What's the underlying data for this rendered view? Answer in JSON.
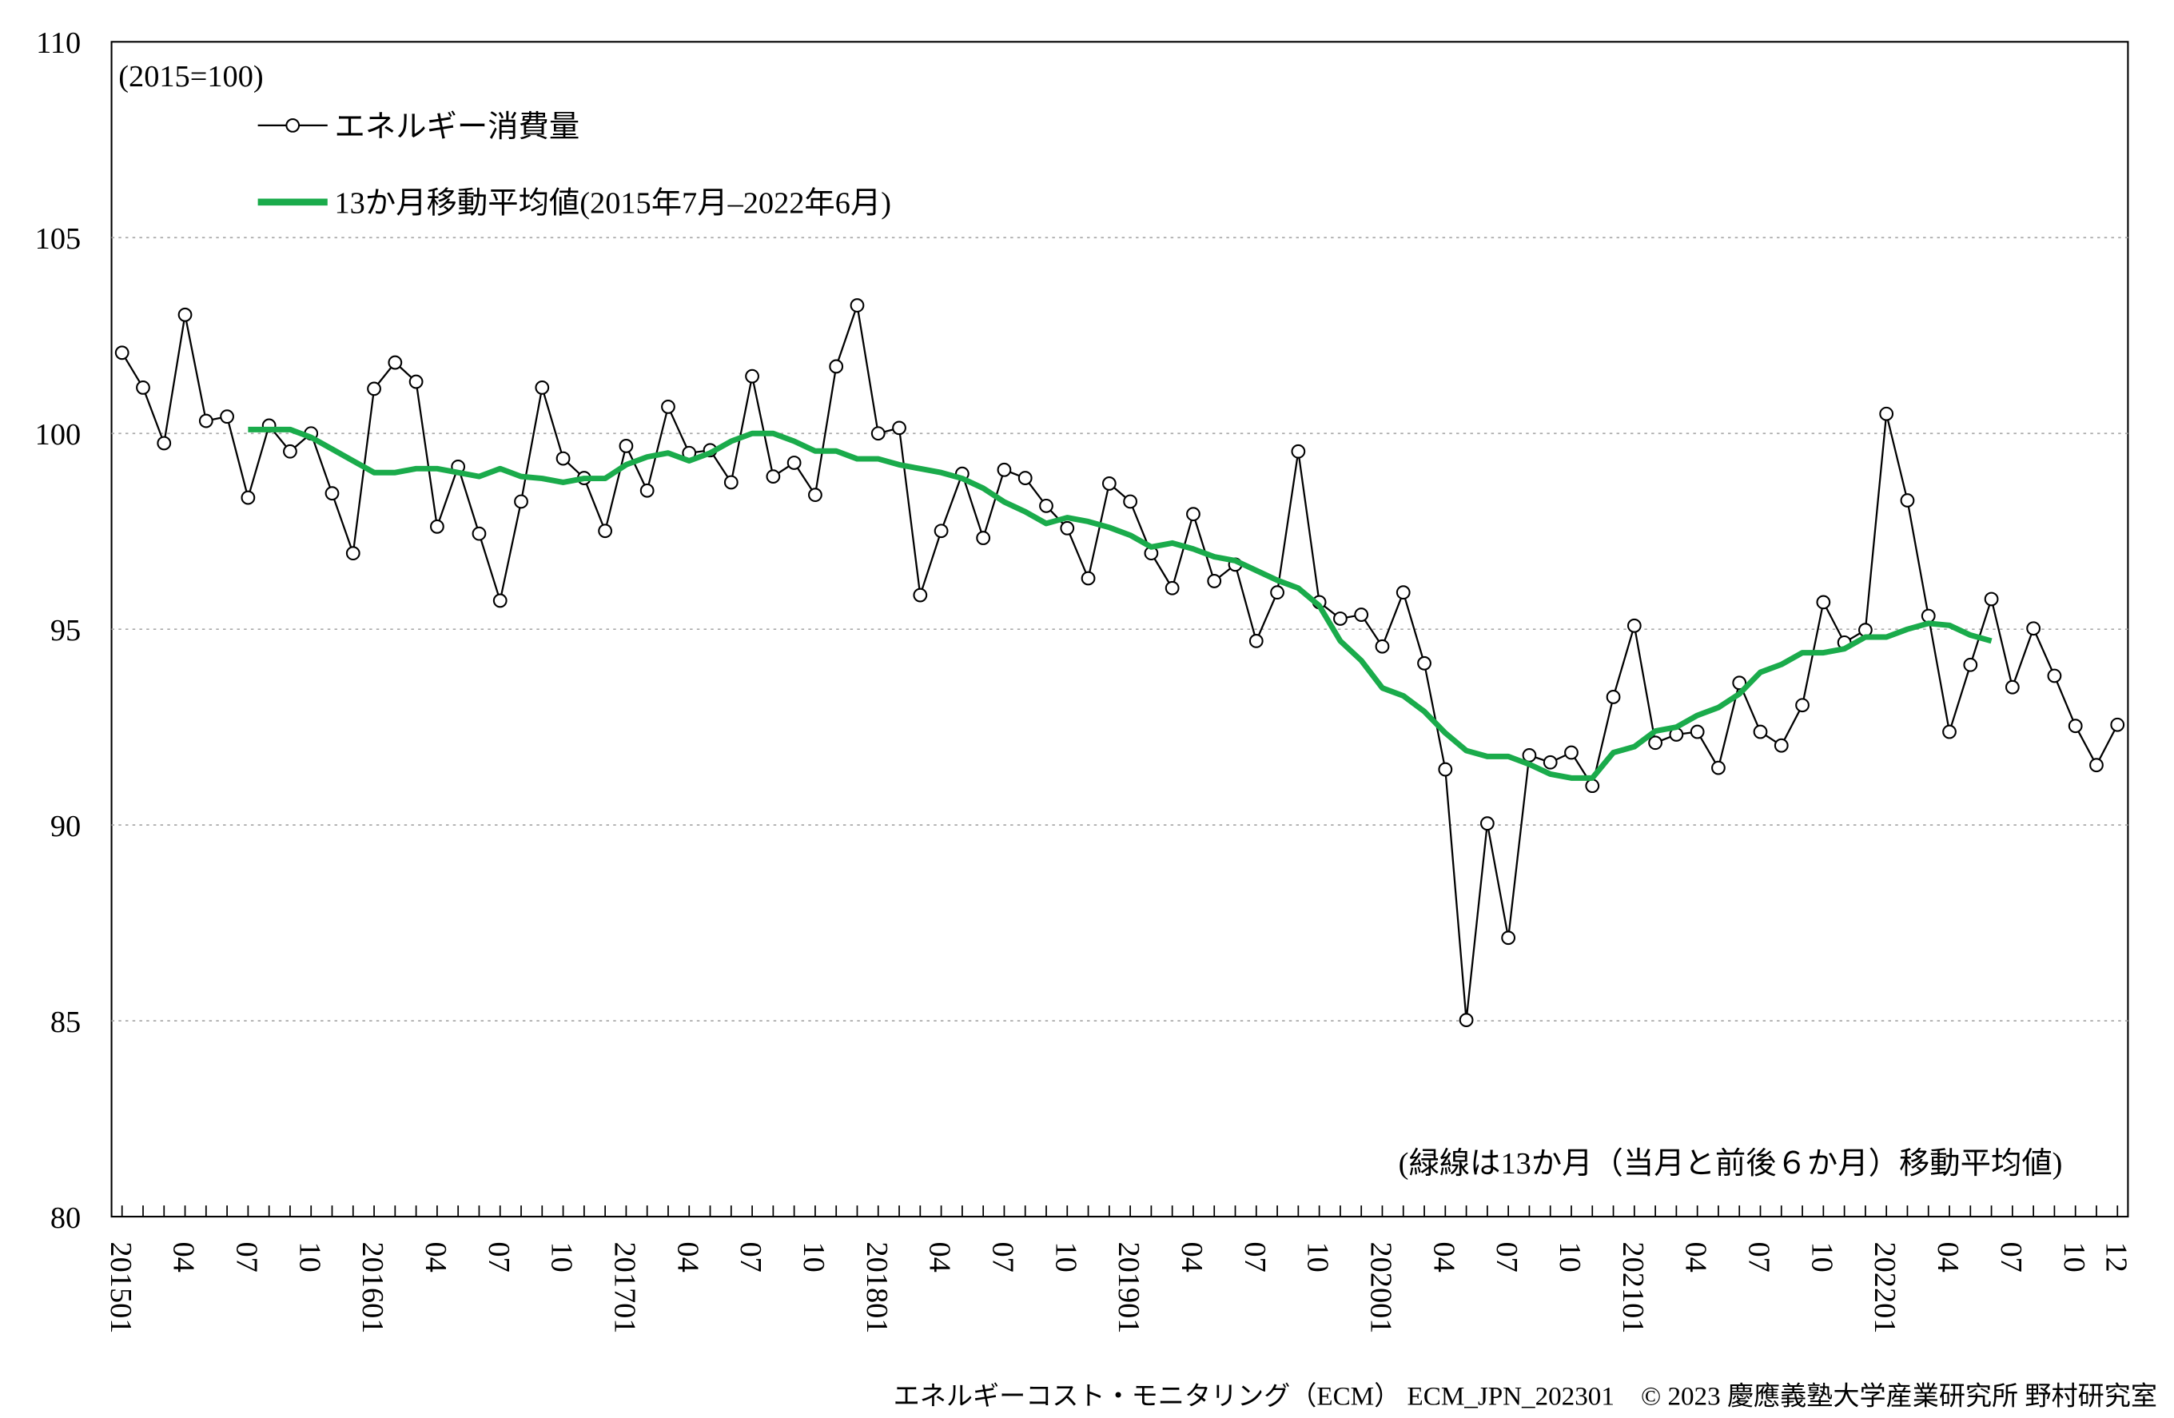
{
  "chart_data": {
    "type": "line",
    "unit_label": "(2015=100)",
    "annotation": "(緑線は13か月（当月と前後６か月）移動平均値)",
    "footer": "エネルギーコスト・モニタリング（ECM） ECM_JPN_202301　© 2023 慶應義塾大学産業研究所 野村研究室",
    "categories": [
      "201501",
      null,
      null,
      "04",
      null,
      null,
      "07",
      null,
      null,
      "10",
      null,
      null,
      "201601",
      null,
      null,
      "04",
      null,
      null,
      "07",
      null,
      null,
      "10",
      null,
      null,
      "201701",
      null,
      null,
      "04",
      null,
      null,
      "07",
      null,
      null,
      "10",
      null,
      null,
      "201801",
      null,
      null,
      "04",
      null,
      null,
      "07",
      null,
      null,
      "10",
      null,
      null,
      "201901",
      null,
      null,
      "04",
      null,
      null,
      "07",
      null,
      null,
      "10",
      null,
      null,
      "202001",
      null,
      null,
      "04",
      null,
      null,
      "07",
      null,
      null,
      "10",
      null,
      null,
      "202101",
      null,
      null,
      "04",
      null,
      null,
      "07",
      null,
      null,
      "10",
      null,
      null,
      "202201",
      null,
      null,
      "04",
      null,
      null,
      "07",
      null,
      null,
      "10",
      null,
      "12"
    ],
    "series": [
      {
        "name": "エネルギー消費量",
        "color": "#000000",
        "markers": true,
        "values": [
          102.06,
          101.17,
          99.75,
          103.03,
          100.32,
          100.43,
          98.36,
          100.2,
          99.54,
          100.0,
          98.47,
          96.94,
          101.14,
          101.81,
          101.32,
          97.62,
          99.15,
          97.44,
          95.73,
          98.26,
          101.17,
          99.36,
          98.86,
          97.51,
          99.68,
          98.54,
          100.68,
          99.5,
          99.57,
          98.75,
          101.46,
          98.9,
          99.25,
          98.43,
          101.71,
          103.27,
          100.0,
          100.14,
          95.87,
          97.51,
          98.97,
          97.33,
          99.07,
          98.86,
          98.15,
          97.58,
          96.3,
          98.72,
          98.26,
          96.94,
          96.05,
          97.94,
          96.23,
          96.65,
          94.7,
          95.94,
          99.54,
          95.69,
          95.27,
          95.37,
          94.56,
          95.94,
          94.13,
          91.42,
          85.02,
          90.04,
          87.12,
          91.78,
          91.6,
          91.85,
          91.0,
          93.27,
          95.09,
          92.1,
          92.31,
          92.38,
          91.46,
          93.63,
          92.38,
          92.03,
          93.06,
          95.69,
          94.66,
          94.98,
          100.5,
          98.29,
          95.34,
          92.38,
          94.09,
          95.77,
          93.52,
          95.02,
          93.81,
          92.53,
          91.53,
          92.56
        ]
      },
      {
        "name": "13か月移動平均値(2015年7月–2022年6月)",
        "color": "#1aab4b",
        "markers": false,
        "values": [
          null,
          null,
          null,
          null,
          null,
          null,
          100.1,
          100.1,
          100.1,
          99.9,
          99.6,
          99.3,
          99.0,
          99.0,
          99.1,
          99.1,
          99.0,
          98.9,
          99.1,
          98.9,
          98.85,
          98.75,
          98.85,
          98.85,
          99.2,
          99.4,
          99.5,
          99.3,
          99.5,
          99.8,
          100.0,
          100.0,
          99.8,
          99.55,
          99.55,
          99.35,
          99.35,
          99.2,
          99.1,
          99.0,
          98.85,
          98.6,
          98.25,
          98.0,
          97.7,
          97.85,
          97.75,
          97.6,
          97.4,
          97.1,
          97.2,
          97.05,
          96.85,
          96.75,
          96.5,
          96.25,
          96.05,
          95.6,
          94.7,
          94.2,
          93.5,
          93.3,
          92.9,
          92.35,
          91.9,
          91.75,
          91.75,
          91.55,
          91.3,
          91.2,
          91.2,
          91.85,
          92.0,
          92.4,
          92.5,
          92.8,
          93.0,
          93.35,
          93.9,
          94.1,
          94.4,
          94.4,
          94.5,
          94.8,
          94.8,
          95.0,
          95.15,
          95.1,
          94.85,
          94.7,
          null,
          null,
          null,
          null,
          null,
          null
        ]
      }
    ],
    "ylim": [
      80,
      110
    ],
    "yticks": [
      80,
      85,
      90,
      95,
      100,
      105,
      110
    ],
    "grid": true
  }
}
